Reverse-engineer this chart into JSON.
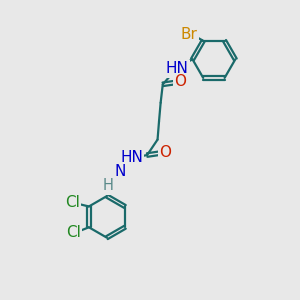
{
  "bg_color": "#e8e8e8",
  "atom_colors": {
    "C": "#1a6a6a",
    "H": "#5a8a8a",
    "N": "#0000cc",
    "O": "#cc2200",
    "Br": "#cc8800",
    "Cl": "#228822"
  },
  "bond_color": "#1a6a6a",
  "bond_width": 1.6,
  "font_size": 10.5
}
